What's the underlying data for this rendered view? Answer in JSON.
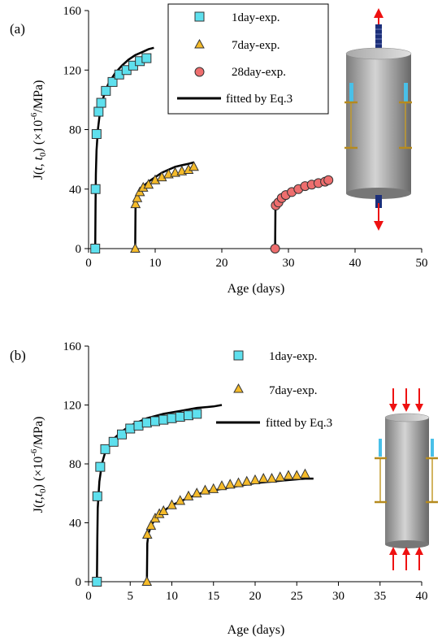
{
  "colors": {
    "exp_1day": "#5ee0ee",
    "exp_7day": "#f5bb2a",
    "exp_28day": "#ee6e6e",
    "fit": "#000000",
    "arrow": "#ee1111",
    "marker_stroke": "#333333"
  },
  "icons": {
    "panel_a": "cylinder-tension-icon",
    "panel_b": "cylinder-compression-icon"
  },
  "chart_data": [
    {
      "type": "scatter",
      "panel_label": "(a)",
      "xlabel": "Age (days)",
      "ylabel_parts": [
        "J(",
        "t",
        ", ",
        "t",
        "0",
        ") (×10",
        "-6",
        "/MPa)"
      ],
      "xlim": [
        0,
        50
      ],
      "ylim": [
        0,
        160
      ],
      "xticks": [
        "0",
        "10",
        "20",
        "30",
        "40",
        "50"
      ],
      "yticks": [
        "0",
        "40",
        "80",
        "120",
        "160"
      ],
      "grid": false,
      "legend_position": "top-center",
      "legend_entries": [
        "1day-exp.",
        "7day-exp.",
        "28day-exp.",
        "fitted by Eq.3"
      ],
      "series": [
        {
          "name": "1day-exp.",
          "marker": "square",
          "x": [
            1.0,
            1.05,
            1.2,
            1.5,
            1.9,
            2.6,
            3.6,
            4.6,
            5.7,
            6.7,
            7.7,
            8.7
          ],
          "y": [
            0,
            40,
            77,
            92,
            98,
            106,
            112,
            117,
            120,
            123,
            126,
            128
          ]
        },
        {
          "name": "7day-exp.",
          "marker": "triangle",
          "x": [
            7.0,
            7.05,
            7.3,
            7.7,
            8.2,
            9.0,
            10.0,
            11.0,
            12.0,
            13.0,
            14.0,
            15.0,
            15.8
          ],
          "y": [
            0,
            30,
            34,
            38,
            41,
            43,
            46,
            48,
            50,
            51,
            52,
            53,
            55
          ]
        },
        {
          "name": "28day-exp.",
          "marker": "circle",
          "x": [
            28.0,
            28.1,
            28.5,
            29.0,
            29.6,
            30.5,
            31.5,
            32.5,
            33.5,
            34.5,
            35.5,
            36.0
          ],
          "y": [
            0,
            29,
            31,
            34,
            36,
            38,
            40,
            42,
            43,
            44,
            45,
            46
          ]
        },
        {
          "name": "fitted by Eq.3",
          "type": "line",
          "curves": [
            {
              "x": [
                1.0,
                1.05,
                1.1,
                1.2,
                1.4,
                1.7,
                2.0,
                2.5,
                3.0,
                4.0,
                5.0,
                6.0,
                7.0,
                8.0,
                9.0,
                9.8
              ],
              "y": [
                0,
                30,
                50,
                66,
                80,
                91,
                98,
                106,
                111,
                118,
                123,
                127,
                130,
                132,
                134,
                135
              ]
            },
            {
              "x": [
                7.0,
                7.05,
                7.2,
                7.5,
                8.0,
                9.0,
                10.0,
                11.0,
                12.0,
                13.0,
                14.0,
                15.0,
                15.8
              ],
              "y": [
                0,
                28,
                33,
                37,
                41,
                45,
                48,
                51,
                53,
                55,
                56,
                57,
                58
              ]
            },
            {
              "x": [
                28.0,
                28.05,
                28.3,
                28.8,
                29.5,
                30.5,
                31.5,
                32.5,
                33.5,
                34.5,
                35.5,
                36.1
              ],
              "y": [
                0,
                27,
                30,
                33,
                35,
                37,
                39,
                41,
                42,
                43,
                44,
                45
              ]
            }
          ]
        }
      ]
    },
    {
      "type": "scatter",
      "panel_label": "(b)",
      "xlabel": "Age (days)",
      "ylabel_parts": [
        "J(",
        "t",
        ",",
        "t",
        "0",
        ") (×10",
        "-6",
        "/MPa)"
      ],
      "xlim": [
        0,
        40
      ],
      "ylim": [
        0,
        160
      ],
      "xticks": [
        "0",
        "5",
        "10",
        "15",
        "20",
        "25",
        "30",
        "35",
        "40"
      ],
      "yticks": [
        "0",
        "40",
        "80",
        "120",
        "160"
      ],
      "grid": false,
      "legend_position": "top-right",
      "legend_entries": [
        "1day-exp.",
        "7day-exp.",
        "fitted by Eq.3"
      ],
      "series": [
        {
          "name": "1day-exp.",
          "marker": "square",
          "x": [
            1.0,
            1.05,
            1.4,
            2.0,
            3.0,
            4.0,
            5.0,
            6.0,
            7.0,
            8.0,
            9.0,
            10.0,
            11.0,
            12.0,
            13.0
          ],
          "y": [
            0,
            58,
            78,
            90,
            95,
            100,
            104,
            106,
            108,
            109,
            110,
            111,
            112,
            113,
            114
          ]
        },
        {
          "name": "7day-exp.",
          "marker": "triangle",
          "x": [
            7.0,
            7.05,
            7.5,
            8.0,
            8.5,
            9.0,
            10.0,
            11.0,
            12.0,
            13.0,
            14.0,
            15.0,
            16.0,
            17.0,
            18.0,
            19.0,
            20.0,
            21.0,
            22.0,
            23.0,
            24.0,
            25.0,
            26.0
          ],
          "y": [
            0,
            32,
            38,
            43,
            46,
            48,
            52,
            55,
            58,
            60,
            62,
            63,
            65,
            66,
            67,
            68,
            69,
            70,
            70,
            71,
            72,
            72,
            73
          ]
        },
        {
          "name": "fitted by Eq.3",
          "type": "line",
          "curves": [
            {
              "x": [
                1.0,
                1.05,
                1.1,
                1.3,
                1.6,
                2.0,
                3.0,
                4.0,
                5.0,
                7.0,
                9.0,
                11.0,
                13.0,
                15.0,
                16.0
              ],
              "y": [
                0,
                30,
                50,
                68,
                80,
                88,
                97,
                102,
                106,
                111,
                114,
                116,
                118,
                119,
                120
              ]
            },
            {
              "x": [
                7.0,
                7.05,
                7.2,
                7.6,
                8.2,
                9.0,
                10.0,
                12.0,
                14.0,
                16.0,
                18.0,
                20.0,
                22.0,
                24.0,
                26.0,
                27.0
              ],
              "y": [
                0,
                26,
                33,
                39,
                44,
                48,
                52,
                57,
                61,
                63,
                65,
                67,
                68,
                69,
                70,
                70
              ]
            }
          ]
        }
      ]
    }
  ]
}
